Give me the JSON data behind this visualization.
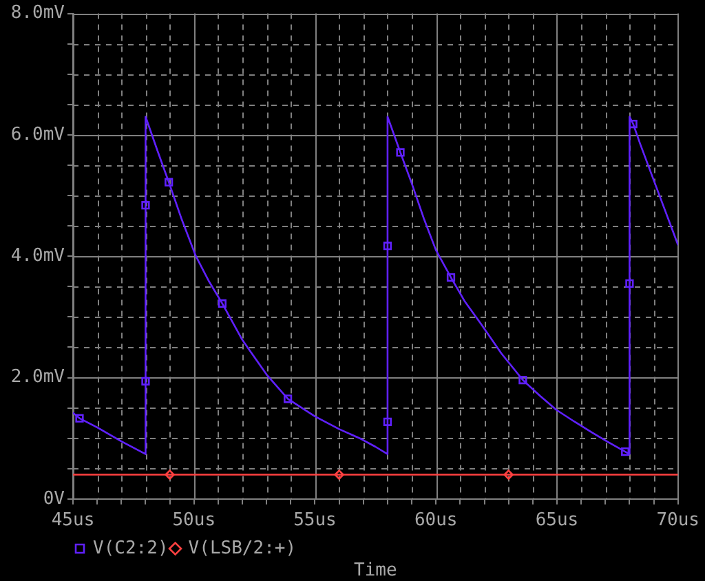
{
  "chart_data": {
    "type": "line",
    "xlabel": "Time",
    "xlim": [
      45,
      70
    ],
    "xticks": [
      {
        "value": 45,
        "label": "45us"
      },
      {
        "value": 46,
        "label": null
      },
      {
        "value": 47,
        "label": null
      },
      {
        "value": 48,
        "label": null
      },
      {
        "value": 49,
        "label": null
      },
      {
        "value": 50,
        "label": "50us"
      },
      {
        "value": 51,
        "label": null
      },
      {
        "value": 52,
        "label": null
      },
      {
        "value": 53,
        "label": null
      },
      {
        "value": 54,
        "label": null
      },
      {
        "value": 55,
        "label": "55us"
      },
      {
        "value": 56,
        "label": null
      },
      {
        "value": 57,
        "label": null
      },
      {
        "value": 58,
        "label": null
      },
      {
        "value": 59,
        "label": null
      },
      {
        "value": 60,
        "label": "60us"
      },
      {
        "value": 61,
        "label": null
      },
      {
        "value": 62,
        "label": null
      },
      {
        "value": 63,
        "label": null
      },
      {
        "value": 64,
        "label": null
      },
      {
        "value": 65,
        "label": "65us"
      },
      {
        "value": 66,
        "label": null
      },
      {
        "value": 67,
        "label": null
      },
      {
        "value": 68,
        "label": null
      },
      {
        "value": 69,
        "label": null
      },
      {
        "value": 70,
        "label": "70us"
      }
    ],
    "ylim": [
      0,
      8
    ],
    "yticks": [
      {
        "value": 0,
        "label": "0V"
      },
      {
        "value": 0.5,
        "label": null
      },
      {
        "value": 1,
        "label": null
      },
      {
        "value": 1.5,
        "label": null
      },
      {
        "value": 2,
        "label": "2.0mV"
      },
      {
        "value": 2.5,
        "label": null
      },
      {
        "value": 3,
        "label": null
      },
      {
        "value": 3.5,
        "label": null
      },
      {
        "value": 4,
        "label": "4.0mV"
      },
      {
        "value": 4.5,
        "label": null
      },
      {
        "value": 5,
        "label": null
      },
      {
        "value": 5.5,
        "label": null
      },
      {
        "value": 6,
        "label": "6.0mV"
      },
      {
        "value": 6.5,
        "label": null
      },
      {
        "value": 7,
        "label": null
      },
      {
        "value": 7.5,
        "label": null
      },
      {
        "value": 8,
        "label": "8.0mV"
      }
    ],
    "grid": true,
    "legend": "bottom left",
    "series": [
      {
        "color": "#6020ff",
        "marker": "none",
        "x": [
          45,
          45.27,
          46,
          47,
          48,
          48,
          48.5,
          48.96,
          49.5,
          50.08,
          50.6,
          51.17,
          52,
          53,
          53.88,
          55,
          56,
          56.9,
          57.5,
          58,
          58,
          58.53,
          59,
          59.5,
          60,
          60.62,
          61.2,
          61.85,
          62.7,
          63.59,
          64.3,
          64.97,
          65.7,
          66.43,
          67.1,
          67.82,
          68,
          68,
          68.15,
          68.44,
          69.19,
          70
        ],
        "values": [
          1.42,
          1.33,
          1.18,
          0.95,
          0.74,
          6.3,
          5.73,
          5.22,
          4.6,
          4.0,
          3.6,
          3.22,
          2.62,
          2.05,
          1.65,
          1.36,
          1.15,
          0.99,
          0.86,
          0.74,
          6.3,
          5.71,
          5.2,
          4.62,
          4.1,
          3.65,
          3.25,
          2.89,
          2.4,
          1.96,
          1.7,
          1.47,
          1.28,
          1.1,
          0.94,
          0.78,
          0.74,
          6.3,
          6.18,
          5.85,
          5.05,
          4.19
        ]
      },
      {
        "type": "scatter",
        "name": "V(C2:2)",
        "color": "#6020ff",
        "marker": "square",
        "x": [
          45.27,
          48,
          48,
          48.96,
          51.17,
          53.88,
          58,
          58,
          58.53,
          60.62,
          63.59,
          67.82,
          68,
          68.15
        ],
        "values": [
          1.33,
          1.94,
          4.84,
          5.22,
          3.22,
          1.65,
          1.27,
          4.17,
          5.71,
          3.65,
          1.96,
          0.78,
          3.55,
          6.18
        ]
      },
      {
        "color": "#ff4040",
        "marker": "none",
        "x": [
          45,
          70
        ],
        "values": [
          0.4,
          0.4
        ]
      },
      {
        "type": "scatter",
        "name": "V(LSB/2:+)",
        "color": "#ff4040",
        "marker": "diamond",
        "x": [
          49,
          56,
          63
        ],
        "values": [
          0.4,
          0.4,
          0.4
        ]
      }
    ]
  }
}
